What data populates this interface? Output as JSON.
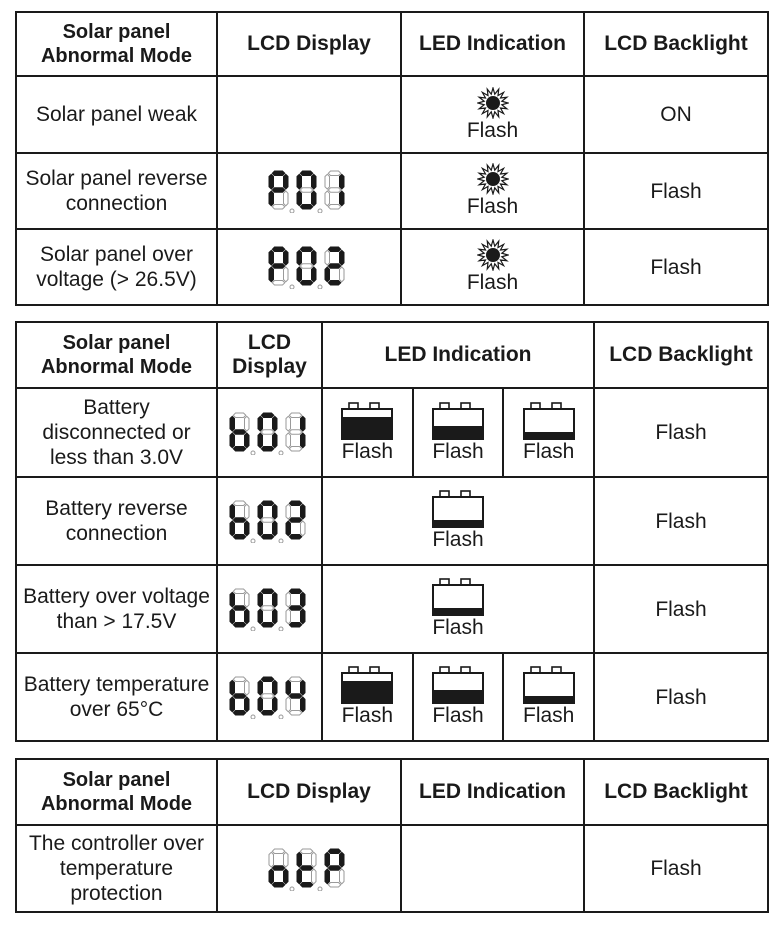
{
  "table1": {
    "headers": {
      "mode": "Solar panel Abnormal Mode",
      "lcd": "LCD Display",
      "led": "LED Indication",
      "backlight": "LCD Backlight"
    },
    "rows": [
      {
        "mode": "Solar panel weak",
        "lcd_code": "",
        "led": "Flash",
        "backlight": "ON"
      },
      {
        "mode": "Solar panel reverse connection",
        "lcd_code": "P01",
        "led": "Flash",
        "backlight": "Flash"
      },
      {
        "mode": "Solar panel over voltage (> 26.5V)",
        "lcd_code": "P02",
        "led": "Flash",
        "backlight": "Flash"
      }
    ]
  },
  "table2": {
    "headers": {
      "mode": "Solar panel Abnormal Mode",
      "lcd": "LCD Display",
      "led": "LED Indication",
      "backlight": "LCD Backlight"
    },
    "rows": [
      {
        "mode": "Battery disconnected or less than 3.0V",
        "lcd_code": "b01",
        "led": [
          "Flash",
          "Flash",
          "Flash"
        ],
        "backlight": "Flash"
      },
      {
        "mode": "Battery reverse connection",
        "lcd_code": "b02",
        "led": [
          "Flash"
        ],
        "backlight": "Flash"
      },
      {
        "mode": "Battery over voltage than > 17.5V",
        "lcd_code": "b03",
        "led": [
          "Flash"
        ],
        "backlight": "Flash"
      },
      {
        "mode": "Battery temperature over 65°C",
        "lcd_code": "b04",
        "led": [
          "Flash",
          "Flash",
          "Flash"
        ],
        "backlight": "Flash"
      }
    ]
  },
  "table3": {
    "headers": {
      "mode": "Solar panel Abnormal Mode",
      "lcd": "LCD Display",
      "led": "LED Indication",
      "backlight": "LCD Backlight"
    },
    "rows": [
      {
        "mode": "The controller over temperature protection",
        "lcd_code": "otP",
        "led": "",
        "backlight": "Flash"
      }
    ]
  },
  "icons": {
    "sun": "sun-icon",
    "battery": "battery-icon",
    "lcd": "seven-segment-display"
  }
}
